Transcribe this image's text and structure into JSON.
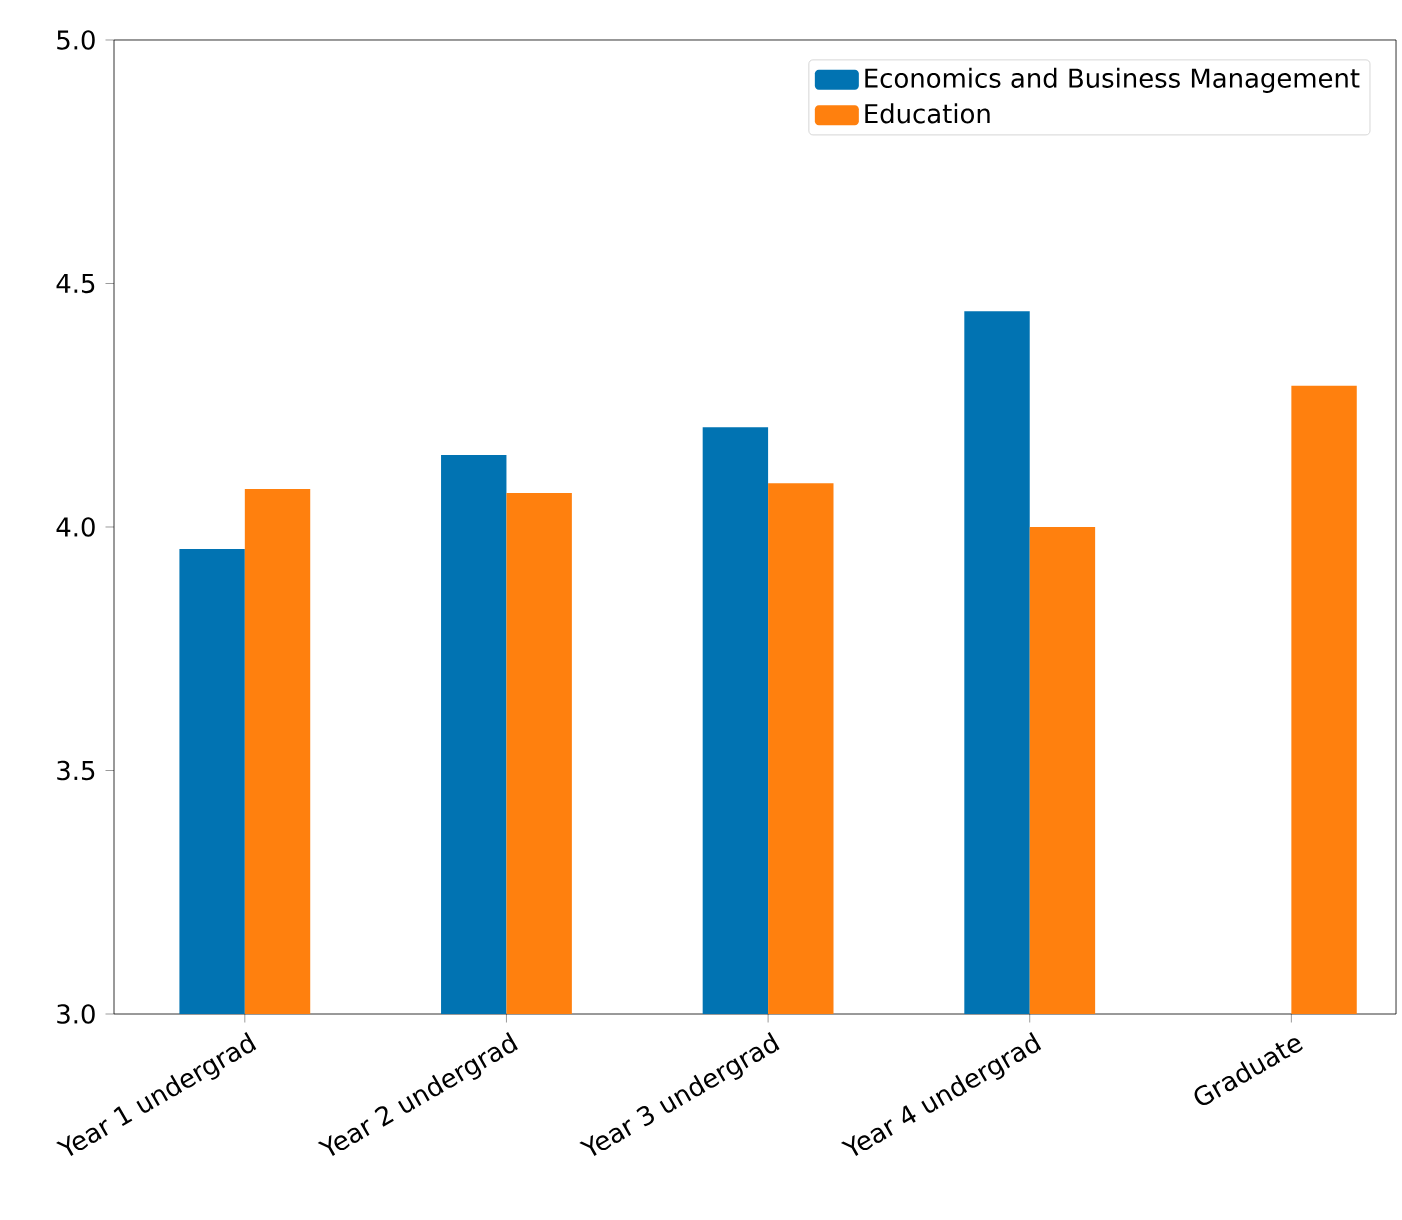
{
  "chart_data": {
    "type": "bar",
    "categories": [
      "Year 1 undergrad",
      "Year 2 undergrad",
      "Year 3 undergrad",
      "Year 4 undergrad",
      "Graduate"
    ],
    "series": [
      {
        "name": "Economics and Business Management",
        "color": "#0173b2",
        "values": [
          3.955,
          4.148,
          4.205,
          4.443,
          null
        ]
      },
      {
        "name": "Education",
        "color": "#ff800e",
        "values": [
          4.078,
          4.07,
          4.09,
          4.0,
          4.29
        ]
      }
    ],
    "ylim": [
      3.0,
      5.0
    ],
    "yticks": [
      {
        "value": 3.0,
        "label": "3.0"
      },
      3.5,
      {
        "value": 4.0,
        "label": "4.0"
      },
      4.5,
      {
        "value": 5.0,
        "label": "5.0"
      }
    ],
    "legend": "top right"
  }
}
